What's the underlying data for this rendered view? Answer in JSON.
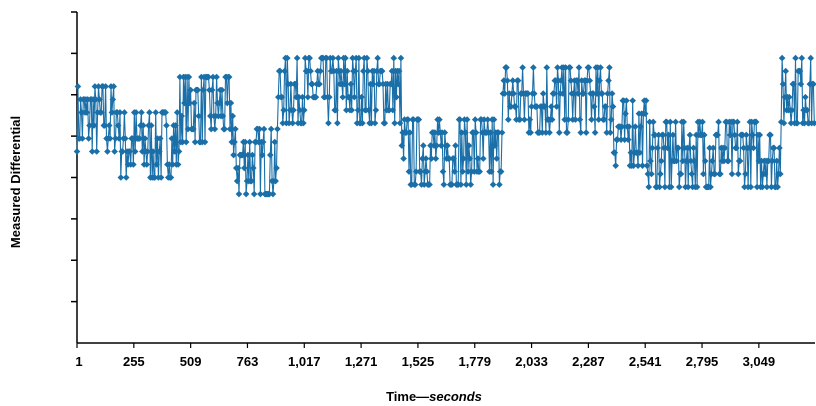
{
  "chart_data": {
    "type": "line",
    "title": "",
    "xlabel_main": "Time—",
    "xlabel_unit": "seconds",
    "ylabel": "Measured Differential",
    "x_ticks": [
      "1",
      "255",
      "509",
      "763",
      "1,017",
      "1,271",
      "1,525",
      "1,779",
      "2,033",
      "2,287",
      "2,541",
      "2,795",
      "3,049"
    ],
    "xlim": [
      1,
      3300
    ],
    "y_gridless_ticks": 8,
    "ylim": [
      0,
      7
    ],
    "grid": false,
    "series_color": "#1a6fa8",
    "marker": "diamond",
    "segments": [
      {
        "x0": 1,
        "x1": 190,
        "base": 4.6
      },
      {
        "x0": 190,
        "x1": 460,
        "base": 4.05
      },
      {
        "x0": 460,
        "x1": 700,
        "base": 4.8
      },
      {
        "x0": 700,
        "x1": 900,
        "base": 3.7
      },
      {
        "x0": 900,
        "x1": 1450,
        "base": 5.2
      },
      {
        "x0": 1450,
        "x1": 1900,
        "base": 3.9
      },
      {
        "x0": 1900,
        "x1": 2400,
        "base": 5.0
      },
      {
        "x0": 2400,
        "x1": 2550,
        "base": 4.3
      },
      {
        "x0": 2550,
        "x1": 3150,
        "base": 3.85
      },
      {
        "x0": 3150,
        "x1": 3300,
        "base": 5.2
      }
    ],
    "point_step": 4,
    "noise_levels": [
      -1.0,
      -0.5,
      0,
      0.5,
      1.0,
      1.5
    ]
  }
}
